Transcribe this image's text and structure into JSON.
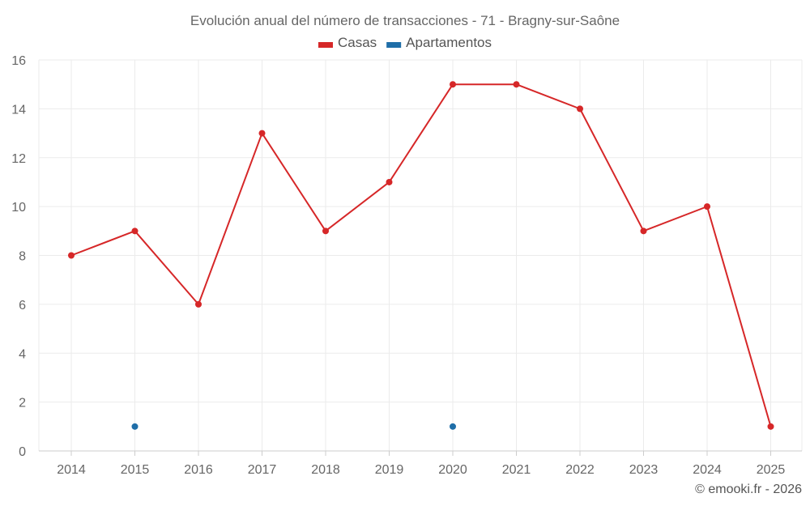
{
  "chart_data": {
    "type": "line",
    "title": "Evolución anual del número de transacciones - 71 - Bragny-sur-Saône",
    "categories": [
      "2014",
      "2015",
      "2016",
      "2017",
      "2018",
      "2019",
      "2020",
      "2021",
      "2022",
      "2023",
      "2024",
      "2025"
    ],
    "ylim": [
      0,
      16
    ],
    "yticks": [
      0,
      2,
      4,
      6,
      8,
      10,
      12,
      14,
      16
    ],
    "grid": true,
    "legend_position": "top-center",
    "series": [
      {
        "name": "Casas",
        "color": "#d62728",
        "values": [
          8,
          9,
          6,
          13,
          9,
          11,
          15,
          15,
          14,
          9,
          10,
          1
        ]
      },
      {
        "name": "Apartamentos",
        "color": "#1f6ea8",
        "values": [
          null,
          1,
          null,
          null,
          null,
          null,
          1,
          null,
          null,
          null,
          null,
          null
        ]
      }
    ]
  },
  "credit": "© emooki.fr - 2026"
}
